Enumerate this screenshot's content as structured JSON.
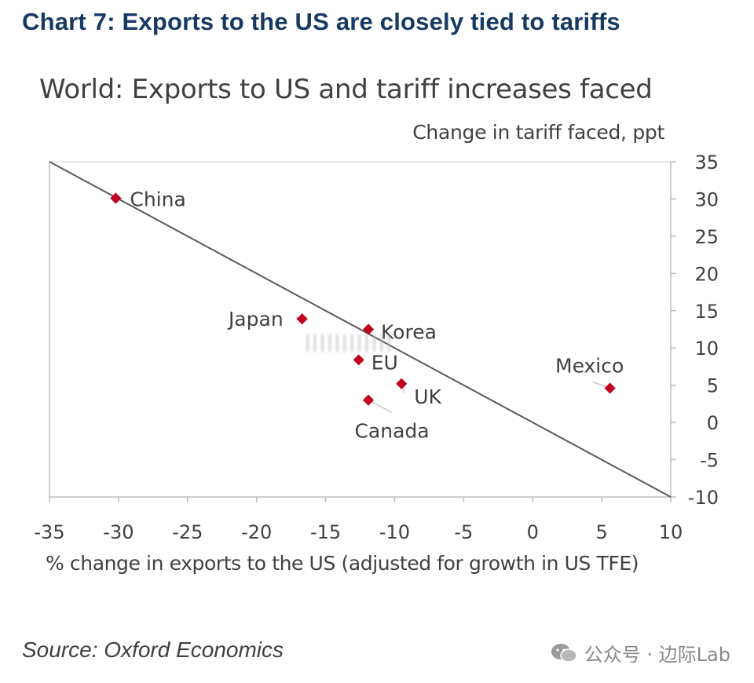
{
  "page": {
    "heading": "Chart 7: Exports to the US are closely tied to tariffs",
    "source": "Source: Oxford Economics",
    "watermark": "公众号 · 边际Lab",
    "blurred_overlay_text": "||||||||||||"
  },
  "chart_data": {
    "type": "scatter",
    "title": "World: Exports to US and tariff increases faced",
    "xlabel": "% change in exports to the US (adjusted for growth in  US TFE)",
    "ylabel": "Change in tariff faced, ppt",
    "xlim": [
      -35,
      10
    ],
    "ylim": [
      -10,
      35
    ],
    "x_ticks": [
      -35,
      -30,
      -25,
      -20,
      -15,
      -10,
      -5,
      0,
      5,
      10
    ],
    "y_ticks": [
      35,
      30,
      25,
      20,
      15,
      10,
      5,
      0,
      -5,
      -10
    ],
    "y_axis_side": "right",
    "grid": false,
    "marker_color": "#c0001e",
    "points": [
      {
        "label": "China",
        "x": -30.2,
        "y": 30.1
      },
      {
        "label": "Japan",
        "x": -16.7,
        "y": 13.9
      },
      {
        "label": "Korea",
        "x": -11.9,
        "y": 12.5
      },
      {
        "label": "EU",
        "x": -12.6,
        "y": 8.4
      },
      {
        "label": "UK",
        "x": -9.5,
        "y": 5.2
      },
      {
        "label": "Canada",
        "x": -11.9,
        "y": 3.0
      },
      {
        "label": "Mexico",
        "x": 5.6,
        "y": 4.6
      }
    ],
    "reference_line": {
      "from": [
        -35,
        35
      ],
      "to": [
        10,
        -10
      ]
    }
  }
}
